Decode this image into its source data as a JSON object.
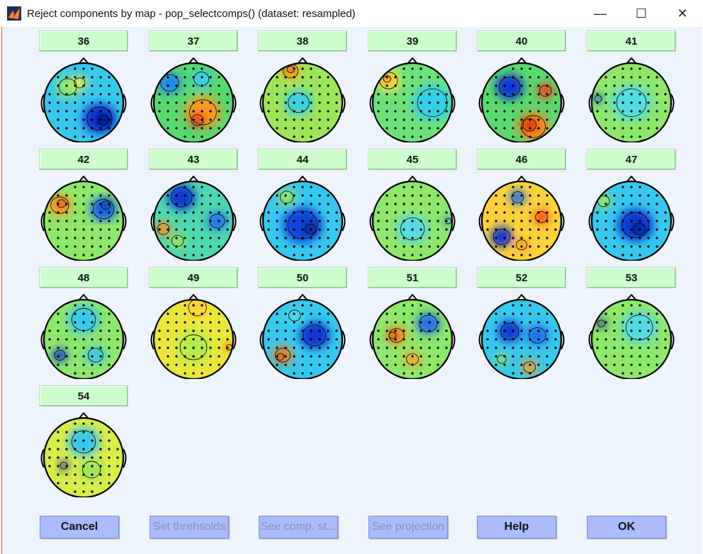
{
  "window": {
    "title": "Reject components by map - pop_selectcomps() (dataset:  resampled)",
    "minimize_symbol": "—",
    "maximize_symbol": "☐",
    "close_symbol": "✕"
  },
  "components": [
    {
      "label": "36",
      "map": "blue-low-right"
    },
    {
      "label": "37",
      "map": "red-low-center"
    },
    {
      "label": "38",
      "map": "red-top"
    },
    {
      "label": "39",
      "map": "red-left-top"
    },
    {
      "label": "40",
      "map": "red-bottom-blue-top"
    },
    {
      "label": "41",
      "map": "flat-cyan"
    },
    {
      "label": "42",
      "map": "red-left-blue-right"
    },
    {
      "label": "43",
      "map": "blue-top-orange-left"
    },
    {
      "label": "44",
      "map": "blue-wide"
    },
    {
      "label": "45",
      "map": "flat-green"
    },
    {
      "label": "46",
      "map": "mixed-red-blue"
    },
    {
      "label": "47",
      "map": "blue-center"
    },
    {
      "label": "48",
      "map": "blue-left-bottom"
    },
    {
      "label": "49",
      "map": "yellow-wide"
    },
    {
      "label": "50",
      "map": "blue-right-red-left"
    },
    {
      "label": "51",
      "map": "red-left-center"
    },
    {
      "label": "52",
      "map": "blue-mixed"
    },
    {
      "label": "53",
      "map": "blue-left-spot"
    },
    {
      "label": "54",
      "map": "blue-left-spot-green"
    }
  ],
  "buttons": {
    "cancel": "Cancel",
    "set_thresholds": "Set threhsolds",
    "see_comp_stats": "See comp. st...",
    "see_projection": "See projection",
    "help": "Help",
    "ok": "OK"
  },
  "colors": {
    "component_button": "#ccffcc",
    "action_button": "#aabbff",
    "client_background": "#eef4fc"
  }
}
